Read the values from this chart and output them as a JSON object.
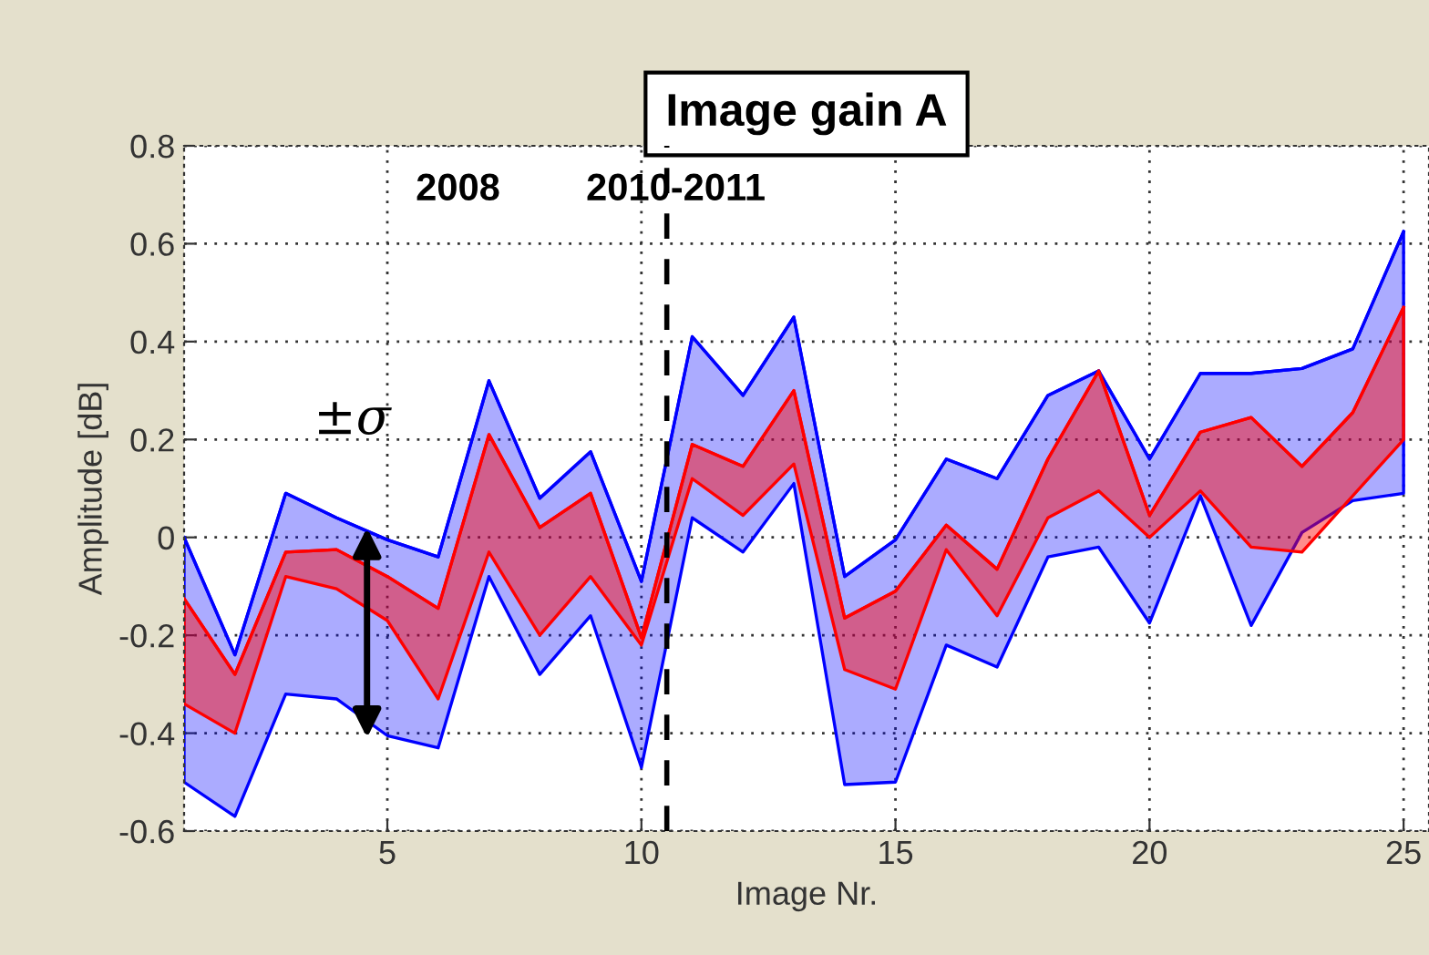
{
  "chart_data": {
    "type": "line",
    "title": "Image gain A",
    "xlabel": "Image Nr.",
    "ylabel": "Amplitude [dB]",
    "x": [
      1,
      2,
      3,
      4,
      5,
      6,
      7,
      8,
      9,
      10,
      11,
      12,
      13,
      14,
      15,
      16,
      17,
      18,
      19,
      20,
      21,
      22,
      23,
      24,
      25
    ],
    "series": [
      {
        "color": "#0000ff",
        "values": [
          0.0,
          -0.24,
          0.09,
          0.04,
          -0.005,
          -0.04,
          0.32,
          0.08,
          0.175,
          -0.09,
          0.41,
          0.29,
          0.45,
          -0.08,
          -0.005,
          0.16,
          0.12,
          0.29,
          0.34,
          0.16,
          0.335,
          0.335,
          0.345,
          0.385,
          0.625
        ],
        "upper": [
          0.0,
          -0.24,
          0.09,
          0.04,
          -0.005,
          -0.04,
          0.32,
          0.08,
          0.175,
          -0.09,
          0.41,
          0.29,
          0.45,
          -0.08,
          -0.005,
          0.16,
          0.12,
          0.29,
          0.34,
          0.16,
          0.335,
          0.335,
          0.345,
          0.385,
          0.625
        ],
        "lower": [
          -0.5,
          -0.57,
          -0.32,
          -0.33,
          -0.405,
          -0.43,
          -0.08,
          -0.28,
          -0.16,
          -0.47,
          0.04,
          -0.03,
          0.11,
          -0.505,
          -0.5,
          -0.22,
          -0.265,
          -0.04,
          -0.02,
          -0.175,
          0.085,
          -0.18,
          0.01,
          0.075,
          0.09
        ]
      },
      {
        "color": "#ff0000",
        "values": [
          -0.125,
          -0.28,
          -0.03,
          -0.025,
          -0.08,
          -0.145,
          0.21,
          0.02,
          0.09,
          -0.205,
          0.19,
          0.145,
          0.3,
          -0.165,
          -0.11,
          0.025,
          -0.065,
          0.16,
          0.34,
          0.045,
          0.215,
          0.245,
          0.145,
          0.255,
          0.47
        ],
        "upper": [
          -0.125,
          -0.28,
          -0.03,
          -0.025,
          -0.08,
          -0.145,
          0.21,
          0.02,
          0.09,
          -0.205,
          0.19,
          0.145,
          0.3,
          -0.165,
          -0.11,
          0.025,
          -0.065,
          0.16,
          0.34,
          0.045,
          0.215,
          0.245,
          0.145,
          0.255,
          0.47
        ],
        "lower": [
          -0.34,
          -0.4,
          -0.08,
          -0.105,
          -0.17,
          -0.33,
          -0.03,
          -0.2,
          -0.08,
          -0.22,
          0.12,
          0.045,
          0.15,
          -0.27,
          -0.31,
          -0.025,
          -0.16,
          0.04,
          0.095,
          0.0,
          0.095,
          -0.02,
          -0.03,
          0.085,
          0.2
        ]
      }
    ],
    "annotations": [
      "2008",
      "2010-2011",
      "±σ"
    ],
    "ref_lines": [
      {
        "axis": "x",
        "value": 10.5,
        "color": "#000000",
        "line_style": "dashed"
      }
    ],
    "xlim": [
      1,
      25.5
    ],
    "xticks": [
      5,
      10,
      15,
      20,
      25
    ],
    "ylim": [
      -0.6,
      0.8
    ],
    "yticks": [
      {
        "value": -0.6,
        "label": "-0.6"
      },
      {
        "value": -0.4,
        "label": "-0.4"
      },
      {
        "value": -0.2,
        "label": "-0.2"
      },
      0,
      0.2,
      0.4,
      0.6,
      0.8
    ],
    "grid": true
  }
}
